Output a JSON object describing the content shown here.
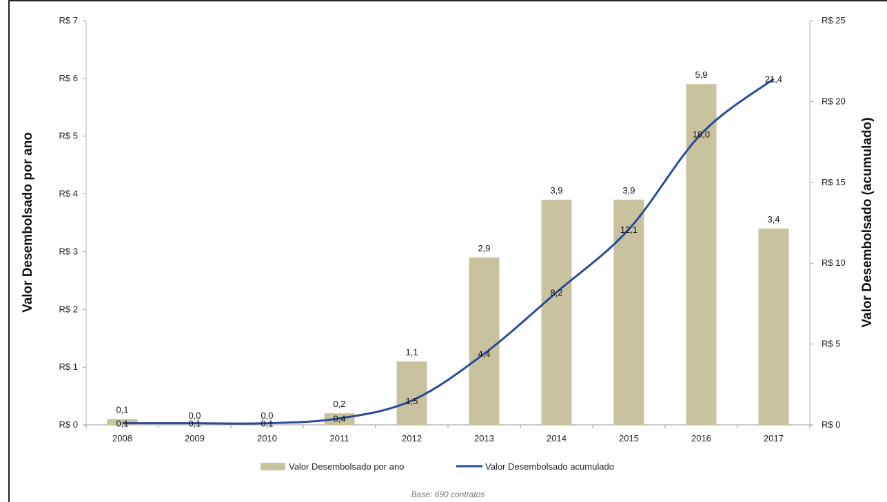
{
  "chart_data": {
    "type": "bar",
    "categories": [
      "2008",
      "2009",
      "2010",
      "2011",
      "2012",
      "2013",
      "2014",
      "2015",
      "2016",
      "2017"
    ],
    "series": [
      {
        "name": "Valor Desembolsado por ano",
        "type": "bar",
        "axis": "left",
        "color": "#c8c29f",
        "values": [
          0.1,
          0.0,
          0.0,
          0.2,
          1.1,
          2.9,
          3.9,
          3.9,
          5.9,
          3.4
        ],
        "labels": [
          "0,1",
          "0,0",
          "0,0",
          "0,2",
          "1,1",
          "2,9",
          "3,9",
          "3,9",
          "5,9",
          "3,4"
        ]
      },
      {
        "name": "Valor Desembolsado acumulado",
        "type": "line",
        "axis": "right",
        "color": "#2a4a9a",
        "values": [
          0.1,
          0.1,
          0.1,
          0.4,
          1.5,
          4.4,
          8.2,
          12.1,
          18.0,
          21.4
        ],
        "labels": [
          "0,1",
          "0,1",
          "0,1",
          "0,4",
          "1,5",
          "4,4",
          "8,2",
          "12,1",
          "18,0",
          "21,4"
        ]
      }
    ],
    "ylabel": "Valor Desembolsado por ano",
    "ylabel_right": "Valor Desembolsado (acumulado)",
    "ylim": [
      0,
      7
    ],
    "ylim_right": [
      0,
      25
    ],
    "yticks": [
      "R$ 0",
      "R$ 1",
      "R$ 2",
      "R$ 3",
      "R$ 4",
      "R$ 5",
      "R$ 6",
      "R$ 7"
    ],
    "yticks_right": [
      "R$ 0",
      "R$ 5",
      "R$ 10",
      "R$ 15",
      "R$ 20",
      "R$ 25"
    ],
    "grid": false,
    "legend_position": "bottom",
    "footnote": "Base: 690 contratos"
  }
}
